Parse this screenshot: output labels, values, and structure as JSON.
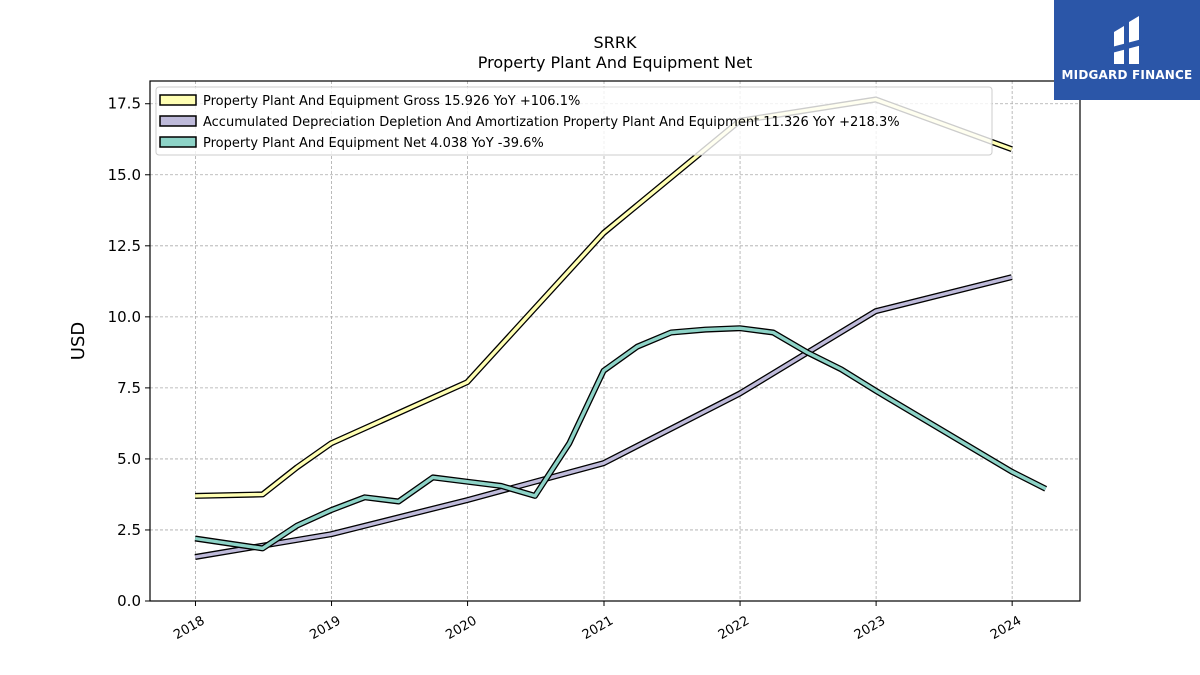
{
  "chart_data": {
    "type": "line",
    "title": "SRRK",
    "subtitle": "Property Plant And Equipment Net",
    "ylabel": "USD",
    "xlabel": "",
    "ylim": [
      0,
      18.3
    ],
    "xlim": [
      "2017-09-01",
      "2024-07-01"
    ],
    "y_ticks": [
      0.0,
      2.5,
      5.0,
      7.5,
      10.0,
      12.5,
      15.0,
      17.5
    ],
    "y_tick_labels": [
      "0.0",
      "2.5",
      "5.0",
      "7.5",
      "10.0",
      "12.5",
      "15.0",
      "17.5"
    ],
    "x_ticks": [
      "2018-01-01",
      "2019-01-01",
      "2020-01-01",
      "2021-01-01",
      "2022-01-01",
      "2023-01-01",
      "2024-01-01"
    ],
    "x_tick_labels": [
      "2018",
      "2019",
      "2020",
      "2021",
      "2022",
      "2023",
      "2024"
    ],
    "grid": true,
    "legend_position": "top-left",
    "series": [
      {
        "name": "Property Plant And Equipment Gross",
        "legend_label": "Property Plant And Equipment Gross  15.926 YoY +106.1%",
        "color": "#ffffb3",
        "points": [
          [
            "2017-12-31",
            3.7
          ],
          [
            "2018-06-30",
            3.75
          ],
          [
            "2018-09-30",
            4.7
          ],
          [
            "2018-12-31",
            5.55
          ],
          [
            "2019-12-31",
            7.7
          ],
          [
            "2020-12-31",
            12.95
          ],
          [
            "2021-12-31",
            16.9
          ],
          [
            "2022-12-31",
            17.65
          ],
          [
            "2023-12-31",
            15.9
          ]
        ]
      },
      {
        "name": "Accumulated Depreciation Depletion And Amortization Property Plant And Equipment",
        "legend_label": "Accumulated Depreciation Depletion And Amortization Property Plant And Equipment  11.326 YoY +218.3%",
        "color": "#bebada",
        "points": [
          [
            "2017-12-31",
            1.55
          ],
          [
            "2018-12-31",
            2.35
          ],
          [
            "2019-12-31",
            3.55
          ],
          [
            "2020-12-31",
            4.85
          ],
          [
            "2021-12-31",
            7.3
          ],
          [
            "2022-12-31",
            10.2
          ],
          [
            "2023-12-31",
            11.4
          ]
        ]
      },
      {
        "name": "Property Plant And Equipment Net",
        "legend_label": "Property Plant And Equipment Net  4.038 YoY -39.6%",
        "color": "#8dd3c7",
        "points": [
          [
            "2017-12-31",
            2.2
          ],
          [
            "2018-06-30",
            1.85
          ],
          [
            "2018-09-30",
            2.65
          ],
          [
            "2018-12-31",
            3.2
          ],
          [
            "2019-03-31",
            3.65
          ],
          [
            "2019-06-30",
            3.5
          ],
          [
            "2019-09-30",
            4.35
          ],
          [
            "2019-12-31",
            4.2
          ],
          [
            "2020-03-31",
            4.05
          ],
          [
            "2020-06-30",
            3.7
          ],
          [
            "2020-09-30",
            5.55
          ],
          [
            "2020-12-31",
            8.1
          ],
          [
            "2021-03-31",
            8.95
          ],
          [
            "2021-06-30",
            9.45
          ],
          [
            "2021-09-30",
            9.55
          ],
          [
            "2021-12-31",
            9.6
          ],
          [
            "2022-03-31",
            9.45
          ],
          [
            "2022-06-30",
            8.75
          ],
          [
            "2022-09-30",
            8.15
          ],
          [
            "2022-12-31",
            7.4
          ],
          [
            "2023-12-31",
            4.55
          ],
          [
            "2024-03-31",
            3.95
          ]
        ]
      }
    ]
  },
  "logo": {
    "text": "MIDGARD FINANCE",
    "background": "#2b56a8"
  }
}
